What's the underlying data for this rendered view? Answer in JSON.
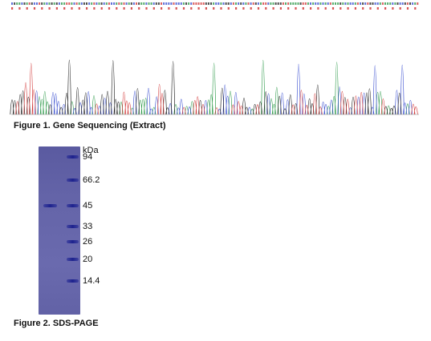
{
  "figure1": {
    "caption": "Figure 1. Gene Sequencing (Extract)",
    "base_colors": {
      "A": "#2e9a4a",
      "C": "#3a4fd0",
      "G": "#222222",
      "T": "#d23a3a"
    }
  },
  "figure2": {
    "caption": "Figure 2. SDS-PAGE",
    "unit_label": "kDa",
    "markers": [
      {
        "label": "94",
        "mw": 94
      },
      {
        "label": "66.2",
        "mw": 66.2
      },
      {
        "label": "45",
        "mw": 45
      },
      {
        "label": "33",
        "mw": 33
      },
      {
        "label": "26",
        "mw": 26
      },
      {
        "label": "20",
        "mw": 20
      },
      {
        "label": "14.4",
        "mw": 14.4
      }
    ],
    "sample_band_kda": 45,
    "gel_color": "#6464a8",
    "band_color": "#2a2f9a"
  }
}
